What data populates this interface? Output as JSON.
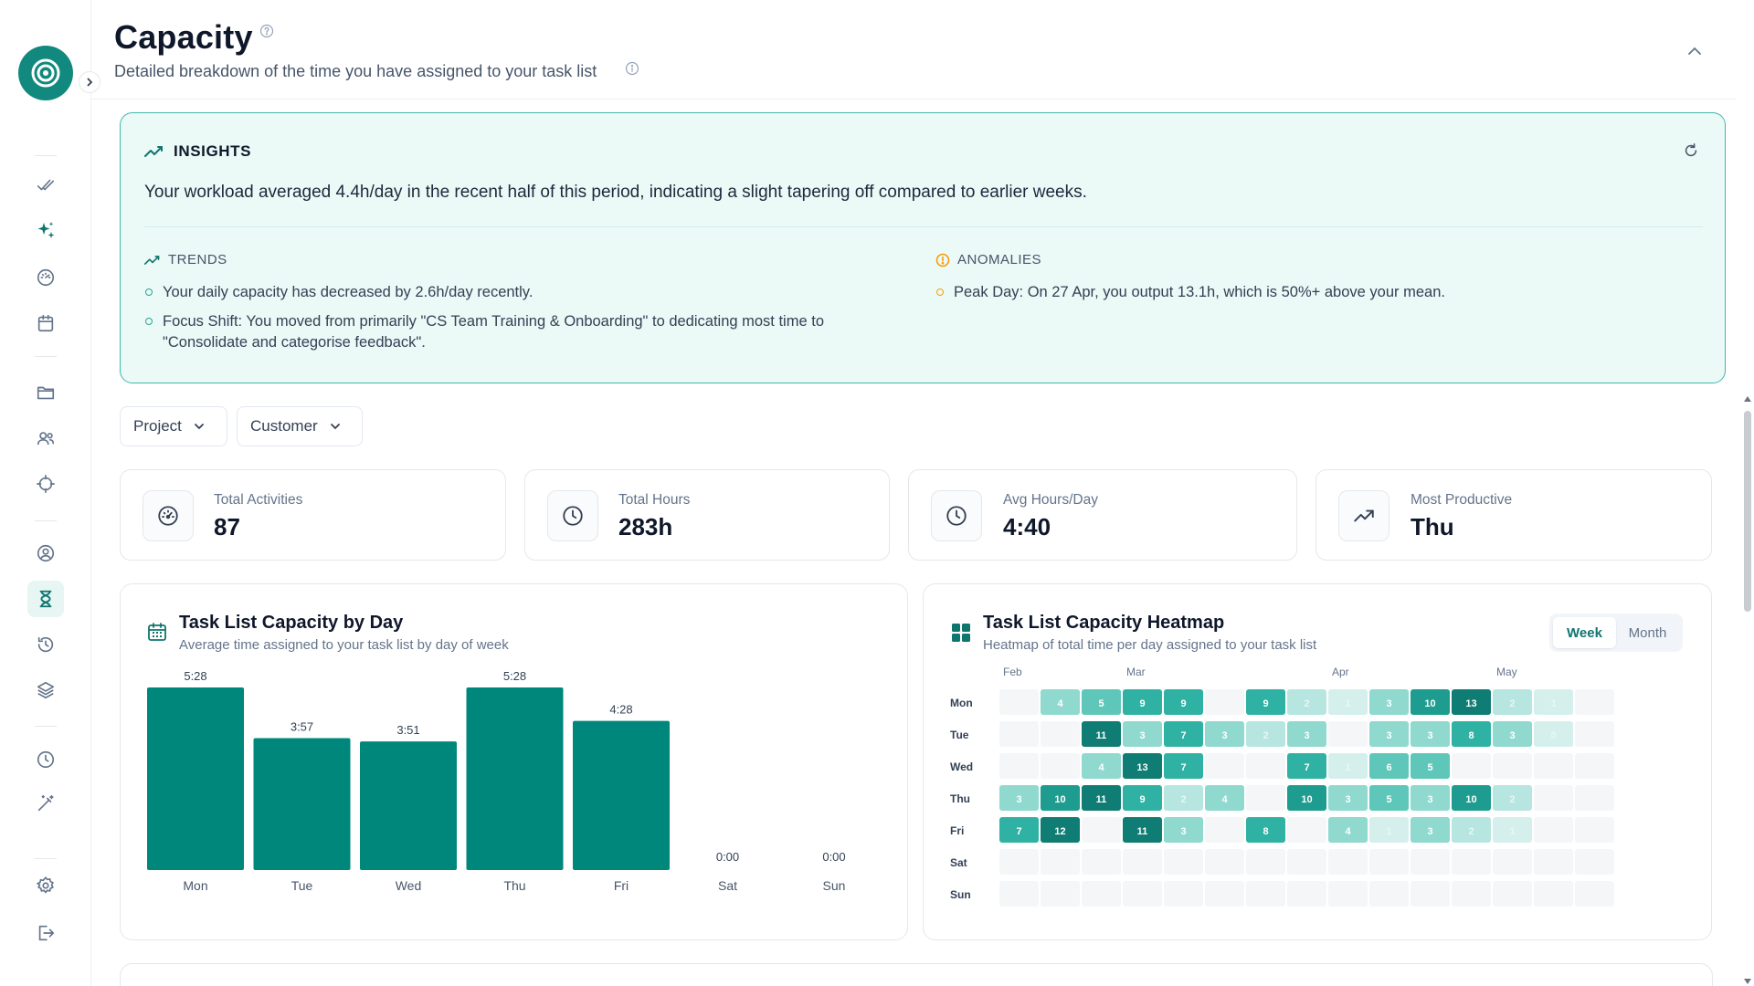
{
  "header": {
    "title": "Capacity",
    "subtitle": "Detailed breakdown of the time you have assigned to your task list"
  },
  "sidebar": {
    "items": [
      {
        "icon": "tasks-check-icon",
        "name": "tasks"
      },
      {
        "icon": "sparkles-icon",
        "name": "ai"
      },
      {
        "icon": "dashboard-gauge-icon",
        "name": "dashboard"
      },
      {
        "icon": "calendar-icon",
        "name": "calendar"
      },
      {
        "icon": "folder-icon",
        "name": "projects"
      },
      {
        "icon": "users-icon",
        "name": "customers"
      },
      {
        "icon": "target-icon",
        "name": "goals"
      },
      {
        "icon": "user-circle-icon",
        "name": "profile"
      },
      {
        "icon": "hourglass-icon",
        "name": "capacity",
        "active": true
      },
      {
        "icon": "history-icon",
        "name": "history"
      },
      {
        "icon": "layers-icon",
        "name": "layers"
      },
      {
        "icon": "clock-icon",
        "name": "time"
      },
      {
        "icon": "magic-wand-icon",
        "name": "automations"
      },
      {
        "icon": "settings-gear-icon",
        "name": "settings"
      },
      {
        "icon": "logout-icon",
        "name": "logout"
      }
    ]
  },
  "insights": {
    "heading": "INSIGHTS",
    "summary": "Your workload averaged 4.4h/day in the recent half of this period, indicating a slight tapering off compared to earlier weeks.",
    "trends": {
      "heading": "TRENDS",
      "items": [
        "Your daily capacity has decreased by 2.6h/day recently.",
        "Focus Shift: You moved from primarily \"CS Team Training & Onboarding\" to dedicating most time to \"Consolidate and categorise feedback\"."
      ]
    },
    "anomalies": {
      "heading": "ANOMALIES",
      "items": [
        "Peak Day: On 27 Apr, you output 13.1h, which is 50%+ above your mean."
      ]
    }
  },
  "filters": {
    "project": "Project",
    "customer": "Customer"
  },
  "stats": [
    {
      "label": "Total Activities",
      "value": "87",
      "icon": "gauge-icon"
    },
    {
      "label": "Total Hours",
      "value": "283h",
      "icon": "clock-icon"
    },
    {
      "label": "Avg Hours/Day",
      "value": "4:40",
      "icon": "clock-icon"
    },
    {
      "label": "Most Productive",
      "value": "Thu",
      "icon": "trending-up-icon"
    }
  ],
  "bar_panel": {
    "title": "Task List Capacity by Day",
    "subtitle": "Average time assigned to your task list by day of week"
  },
  "heatmap_panel": {
    "title": "Task List Capacity Heatmap",
    "subtitle": "Heatmap of total time per day assigned to your task list",
    "toggle": {
      "week": "Week",
      "month": "Month",
      "selected": "Week"
    }
  },
  "colors": {
    "accent": "#00877c",
    "heat_levels": [
      "#f4f6f8",
      "#d5f0ec",
      "#b7e6e0",
      "#8fd9cf",
      "#5ec7b9",
      "#2fb2a3",
      "#1e9c8f",
      "#0f7d73"
    ]
  },
  "chart_data": [
    {
      "type": "bar",
      "categories": [
        "Mon",
        "Tue",
        "Wed",
        "Thu",
        "Fri",
        "Sat",
        "Sun"
      ],
      "values": [
        5.467,
        3.95,
        3.85,
        5.467,
        4.467,
        0,
        0
      ],
      "data_labels": [
        "5:28",
        "3:57",
        "3:51",
        "5:28",
        "4:28",
        "0:00",
        "0:00"
      ],
      "title": "Task List Capacity by Day",
      "subtitle": "Average time assigned to your task list by day of week",
      "grid": false
    },
    {
      "type": "heatmap",
      "title": "Task List Capacity Heatmap",
      "month_labels": [
        {
          "label": "Feb",
          "week": 0
        },
        {
          "label": "Mar",
          "week": 3
        },
        {
          "label": "Apr",
          "week": 8
        },
        {
          "label": "May",
          "week": 12
        }
      ],
      "rows": [
        "Mon",
        "Tue",
        "Wed",
        "Thu",
        "Fri",
        "Sat",
        "Sun"
      ],
      "weeks": 15,
      "values": [
        [
          null,
          4,
          5,
          9,
          9,
          null,
          9,
          2,
          1,
          3,
          10,
          13,
          2,
          1,
          null
        ],
        [
          null,
          null,
          11,
          3,
          7,
          3,
          2,
          3,
          null,
          3,
          3,
          8,
          3,
          0,
          null
        ],
        [
          null,
          null,
          4,
          13,
          7,
          null,
          null,
          7,
          1,
          6,
          5,
          null,
          null,
          null,
          null
        ],
        [
          3,
          10,
          11,
          9,
          2,
          4,
          null,
          10,
          3,
          5,
          3,
          10,
          2,
          null,
          null
        ],
        [
          7,
          12,
          null,
          11,
          3,
          null,
          8,
          null,
          4,
          1,
          3,
          2,
          1,
          null,
          null
        ],
        [
          null,
          null,
          null,
          null,
          null,
          null,
          null,
          null,
          null,
          null,
          null,
          null,
          null,
          null,
          null
        ],
        [
          null,
          null,
          null,
          null,
          null,
          null,
          null,
          null,
          null,
          null,
          null,
          null,
          null,
          null,
          null
        ]
      ]
    }
  ]
}
